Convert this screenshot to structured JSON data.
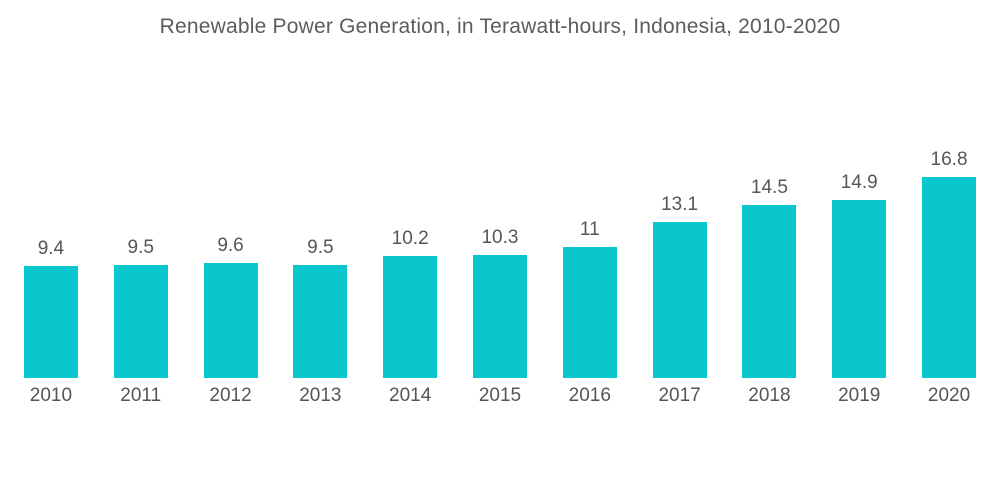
{
  "chart_data": {
    "type": "bar",
    "title": "Renewable Power Generation, in Terawatt-hours, Indonesia, 2010-2020",
    "categories": [
      "2010",
      "2011",
      "2012",
      "2013",
      "2014",
      "2015",
      "2016",
      "2017",
      "2018",
      "2019",
      "2020"
    ],
    "values": [
      9.4,
      9.5,
      9.6,
      9.5,
      10.2,
      10.3,
      11,
      13.1,
      14.5,
      14.9,
      16.8
    ],
    "value_labels": [
      "9.4",
      "9.5",
      "9.6",
      "9.5",
      "10.2",
      "10.3",
      "11",
      "13.1",
      "14.5",
      "14.9",
      "16.8"
    ],
    "xlabel": "",
    "ylabel": "",
    "ylim": [
      0,
      17
    ],
    "grid": false,
    "legend": false,
    "bar_color": "#0ac6cd",
    "title_color": "#5b5c5e",
    "label_color": "#555658"
  }
}
